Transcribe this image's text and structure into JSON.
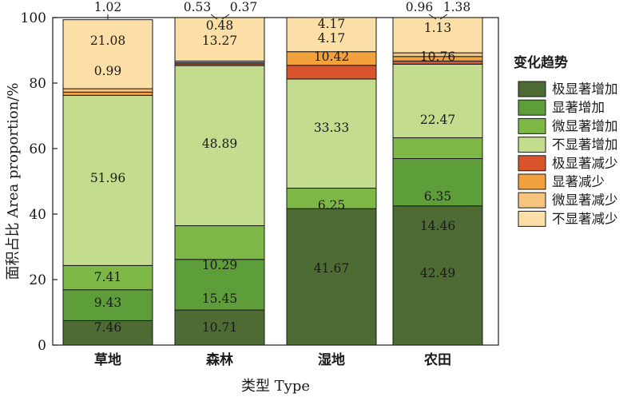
{
  "chart_data": {
    "type": "bar",
    "stacked": true,
    "xlabel": "类型 Type",
    "ylabel": "面积占比 Area proportion/%",
    "ylim": [
      0,
      100
    ],
    "yticks": [
      0,
      20,
      40,
      60,
      80,
      100
    ],
    "categories": [
      "草地",
      "森林",
      "湿地",
      "农田"
    ],
    "legend_title": "变化趋势",
    "legend_position": "right",
    "series": [
      {
        "name": "极显著增加",
        "color": "#4e6b33",
        "values": [
          7.46,
          10.71,
          41.67,
          42.49
        ]
      },
      {
        "name": "显著增加",
        "color": "#5e9e3a",
        "values": [
          9.43,
          15.45,
          0,
          14.46
        ]
      },
      {
        "name": "微显著增加",
        "color": "#7db847",
        "values": [
          7.41,
          10.29,
          6.25,
          6.35
        ]
      },
      {
        "name": "不显著增加",
        "color": "#c4dc8e",
        "values": [
          51.96,
          48.89,
          33.33,
          22.47
        ]
      },
      {
        "name": "极显著减少",
        "color": "#d9542b",
        "values": [
          0,
          0.53,
          4.17,
          0.96
        ]
      },
      {
        "name": "显著减少",
        "color": "#f2a23c",
        "values": [
          0.99,
          0.37,
          4.17,
          1.38
        ]
      },
      {
        "name": "微显著减少",
        "color": "#f6c47c",
        "values": [
          1.02,
          0.48,
          0,
          1.13
        ]
      },
      {
        "name": "不显著减少",
        "color": "#fbdfa6",
        "values": [
          21.08,
          13.27,
          10.42,
          10.76
        ]
      }
    ],
    "data_labels": [
      [
        "7.46",
        "9.43",
        "7.41",
        "51.96",
        "",
        "0.99",
        "1.02",
        "21.08"
      ],
      [
        "10.71",
        "15.45",
        "10.29",
        "48.89",
        "0.53",
        "0.37",
        "0.48",
        "13.27"
      ],
      [
        "41.67",
        "",
        "6.25",
        "33.33",
        "4.17",
        "4.17",
        "",
        "10.42"
      ],
      [
        "42.49",
        "14.46",
        "6.35",
        "22.47",
        "0.96",
        "1.38",
        "1.13",
        "10.76"
      ]
    ]
  }
}
